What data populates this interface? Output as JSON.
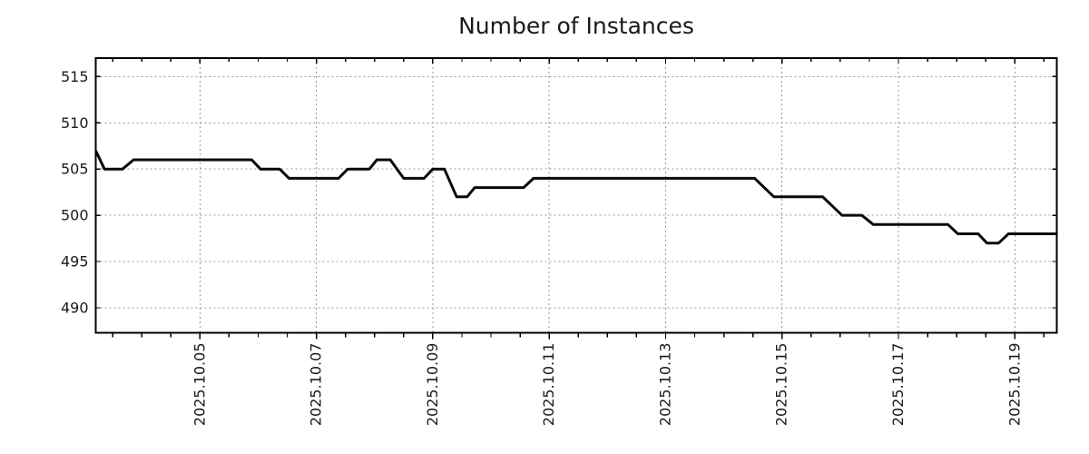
{
  "chart_data": {
    "type": "line",
    "title": "Number of Instances",
    "xlabel": "",
    "ylabel": "",
    "x_unit": "date, October 2025 (day of month with fractional time)",
    "xlim": [
      3.21,
      19.72
    ],
    "ylim": [
      487.3,
      517.0
    ],
    "grid": true,
    "grid_style": "dotted",
    "legend": "none",
    "x_ticks": [
      {
        "day": 5,
        "label": "2025.10.05"
      },
      {
        "day": 7,
        "label": "2025.10.07"
      },
      {
        "day": 9,
        "label": "2025.10.09"
      },
      {
        "day": 11,
        "label": "2025.10.11"
      },
      {
        "day": 13,
        "label": "2025.10.13"
      },
      {
        "day": 15,
        "label": "2025.10.15"
      },
      {
        "day": 17,
        "label": "2025.10.17"
      },
      {
        "day": 19,
        "label": "2025.10.19"
      }
    ],
    "x_minor_tick_interval_days": 0.5,
    "y_ticks": [
      490,
      495,
      500,
      505,
      510,
      515
    ],
    "colors": {
      "line": "#0a0a0a",
      "grid": "#999999",
      "frame": "#000000",
      "text": "#1a1a1a"
    },
    "series": [
      {
        "name": "instances",
        "points": [
          [
            3.21,
            507
          ],
          [
            3.36,
            505
          ],
          [
            3.67,
            505
          ],
          [
            3.86,
            506
          ],
          [
            5.89,
            506
          ],
          [
            6.04,
            505
          ],
          [
            6.37,
            505
          ],
          [
            6.53,
            504
          ],
          [
            7.38,
            504
          ],
          [
            7.54,
            505
          ],
          [
            7.91,
            505
          ],
          [
            8.04,
            506
          ],
          [
            8.27,
            506
          ],
          [
            8.5,
            504
          ],
          [
            8.85,
            504
          ],
          [
            9.0,
            505
          ],
          [
            9.2,
            505
          ],
          [
            9.41,
            502
          ],
          [
            9.59,
            502
          ],
          [
            9.72,
            503
          ],
          [
            10.56,
            503
          ],
          [
            10.73,
            504
          ],
          [
            14.53,
            504
          ],
          [
            14.86,
            502
          ],
          [
            15.7,
            502
          ],
          [
            16.03,
            500
          ],
          [
            16.37,
            500
          ],
          [
            16.57,
            499
          ],
          [
            17.85,
            499
          ],
          [
            18.02,
            498
          ],
          [
            18.37,
            498
          ],
          [
            18.52,
            497
          ],
          [
            18.72,
            497
          ],
          [
            18.89,
            498
          ],
          [
            19.72,
            498
          ]
        ]
      }
    ]
  }
}
